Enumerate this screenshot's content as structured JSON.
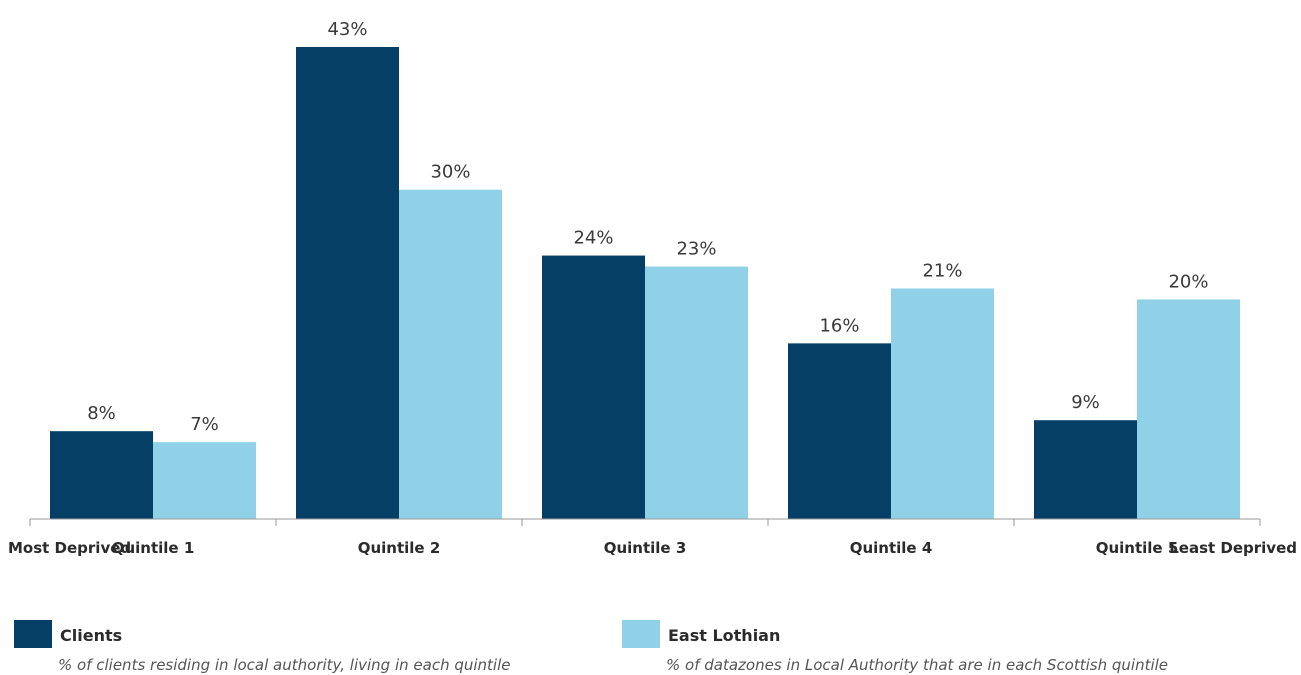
{
  "chart_data": {
    "type": "bar",
    "categories": [
      "Quintile 1",
      "Quintile 2",
      "Quintile 3",
      "Quintile 4",
      "Quintile 5"
    ],
    "series": [
      {
        "name": "Clients",
        "values": [
          8,
          43,
          24,
          16,
          9
        ],
        "color": "#063f66"
      },
      {
        "name": "East Lothian",
        "values": [
          7,
          30,
          23,
          21,
          20
        ],
        "color": "#91d1e8"
      }
    ],
    "value_suffix": "%",
    "ylim": [
      0,
      43
    ],
    "axis_end_labels": {
      "left": "Most Deprived",
      "right": "Least Deprived"
    },
    "grid": false,
    "legend_position": "bottom"
  },
  "legend": [
    {
      "name": "Clients",
      "description": "% of clients residing in local authority, living in each quintile",
      "color": "#063f66"
    },
    {
      "name": "East Lothian",
      "description": "% of datazones in Local Authority that are in each Scottish quintile",
      "color": "#91d1e8"
    }
  ]
}
